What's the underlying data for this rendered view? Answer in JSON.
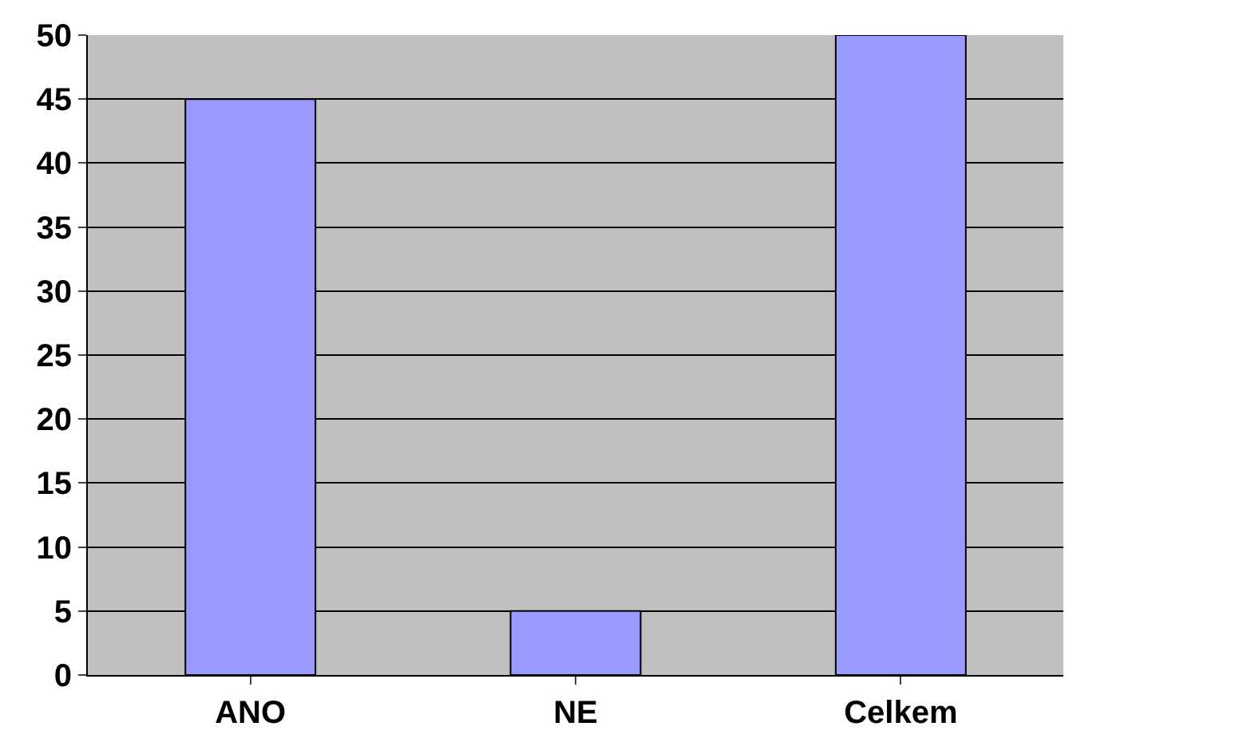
{
  "chart_data": {
    "type": "bar",
    "categories": [
      "ANO",
      "NE",
      "Celkem"
    ],
    "series": [
      {
        "color": "#9999ff",
        "values": [
          45,
          5,
          50
        ]
      }
    ],
    "ylim": [
      0,
      50
    ],
    "yticks": [
      0,
      5,
      10,
      15,
      20,
      25,
      30,
      35,
      40,
      45,
      50
    ],
    "grid": "y"
  }
}
